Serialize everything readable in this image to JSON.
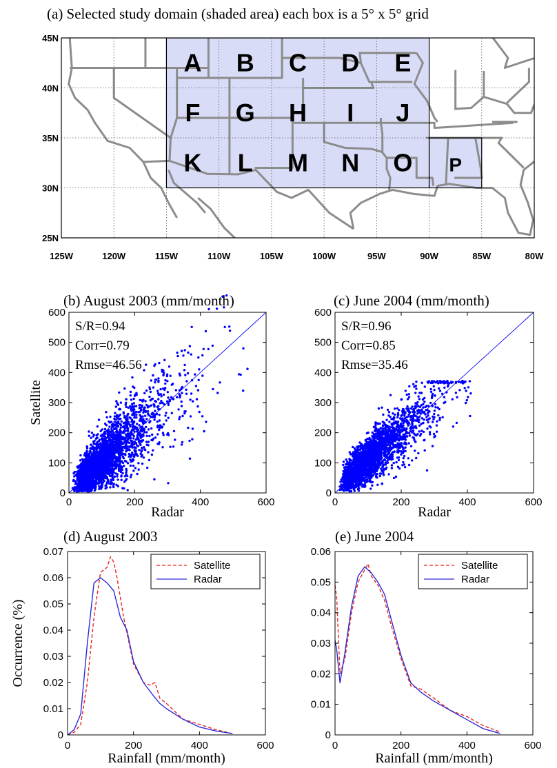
{
  "titles": {
    "a": "(a) Selected study domain (shaded area)  each box is a 5° x 5° grid",
    "b": "(b)  August 2003  (mm/month)",
    "c": "(c) June 2004 (mm/month)",
    "d": "(d)  August 2003",
    "e": "(e) June 2004"
  },
  "colors": {
    "shade": "#d9dcf7",
    "scatter": "#0000ff",
    "satellite": "#e8231d",
    "radar": "#2b2bd6",
    "border": "#8c8c8c"
  },
  "chart_data": [
    {
      "id": "a",
      "type": "map",
      "title": "(a) Selected study domain (shaded area)  each box is a 5° x 5° grid",
      "x_ticks": [
        "125W",
        "120W",
        "115W",
        "110W",
        "105W",
        "100W",
        "95W",
        "90W",
        "85W",
        "80W"
      ],
      "y_ticks": [
        "25N",
        "30N",
        "35N",
        "40N",
        "45N"
      ],
      "xlim": [
        -125,
        -80
      ],
      "ylim": [
        25,
        45
      ],
      "grid": true,
      "boxes": [
        {
          "label": "A",
          "lon": [
            -115,
            -110
          ],
          "lat": [
            40,
            45
          ]
        },
        {
          "label": "B",
          "lon": [
            -110,
            -105
          ],
          "lat": [
            40,
            45
          ]
        },
        {
          "label": "C",
          "lon": [
            -105,
            -100
          ],
          "lat": [
            40,
            45
          ]
        },
        {
          "label": "D",
          "lon": [
            -100,
            -95
          ],
          "lat": [
            40,
            45
          ]
        },
        {
          "label": "E",
          "lon": [
            -95,
            -90
          ],
          "lat": [
            40,
            45
          ]
        },
        {
          "label": "F",
          "lon": [
            -115,
            -110
          ],
          "lat": [
            35,
            40
          ]
        },
        {
          "label": "G",
          "lon": [
            -110,
            -105
          ],
          "lat": [
            35,
            40
          ]
        },
        {
          "label": "H",
          "lon": [
            -105,
            -100
          ],
          "lat": [
            35,
            40
          ]
        },
        {
          "label": "I",
          "lon": [
            -100,
            -95
          ],
          "lat": [
            35,
            40
          ]
        },
        {
          "label": "J",
          "lon": [
            -95,
            -90
          ],
          "lat": [
            35,
            40
          ]
        },
        {
          "label": "K",
          "lon": [
            -115,
            -110
          ],
          "lat": [
            30,
            35
          ]
        },
        {
          "label": "L",
          "lon": [
            -110,
            -105
          ],
          "lat": [
            30,
            35
          ]
        },
        {
          "label": "M",
          "lon": [
            -105,
            -100
          ],
          "lat": [
            30,
            35
          ]
        },
        {
          "label": "N",
          "lon": [
            -100,
            -95
          ],
          "lat": [
            30,
            35
          ]
        },
        {
          "label": "O",
          "lon": [
            -95,
            -90
          ],
          "lat": [
            30,
            35
          ]
        },
        {
          "label": "P",
          "lon": [
            -90,
            -85
          ],
          "lat": [
            30,
            35
          ]
        }
      ]
    },
    {
      "id": "b",
      "type": "scatter",
      "title": "(b)  August 2003  (mm/month)",
      "xlabel": "Radar",
      "ylabel": "Satellite",
      "xlim": [
        0,
        600
      ],
      "ylim": [
        0,
        600
      ],
      "x_ticks": [
        0,
        200,
        400,
        600
      ],
      "y_ticks": [
        0,
        100,
        200,
        300,
        400,
        500,
        600
      ],
      "stats": [
        "S/R=0.94",
        "Corr=0.79",
        "Rmse=46.56"
      ],
      "one_to_one_line": true,
      "points_summary": {
        "x_range": [
          10,
          550
        ],
        "y_range": [
          10,
          540
        ],
        "slope": 0.94,
        "r": 0.79
      }
    },
    {
      "id": "c",
      "type": "scatter",
      "title": "(c) June 2004 (mm/month)",
      "xlabel": "Radar",
      "ylabel": "",
      "xlim": [
        0,
        600
      ],
      "ylim": [
        0,
        600
      ],
      "x_ticks": [
        0,
        200,
        400,
        600
      ],
      "y_ticks": [
        0,
        100,
        200,
        300,
        400,
        500,
        600
      ],
      "stats": [
        "S/R=0.96",
        "Corr=0.85",
        "Rmse=35.46"
      ],
      "one_to_one_line": true,
      "points_summary": {
        "x_range": [
          5,
          420
        ],
        "y_range": [
          5,
          375
        ],
        "slope": 0.96,
        "r": 0.85
      }
    },
    {
      "id": "d",
      "type": "line",
      "title": "(d)  August 2003",
      "xlabel": "Rainfall (mm/month)",
      "ylabel": "Occurrence (%)",
      "xlim": [
        0,
        600
      ],
      "ylim": [
        0,
        0.07
      ],
      "x_ticks": [
        0,
        200,
        400,
        600
      ],
      "y_ticks": [
        "0",
        "0.01",
        "0.02",
        "0.03",
        "0.04",
        "0.05",
        "0.06",
        "0.07"
      ],
      "legend": [
        "Satellite",
        "Radar"
      ],
      "series": [
        {
          "name": "Satellite",
          "x": [
            0,
            20,
            40,
            60,
            80,
            100,
            120,
            130,
            140,
            150,
            170,
            200,
            230,
            250,
            265,
            280,
            300,
            350,
            400,
            450,
            500
          ],
          "y": [
            0,
            0.001,
            0.004,
            0.02,
            0.045,
            0.062,
            0.064,
            0.068,
            0.066,
            0.06,
            0.045,
            0.027,
            0.02,
            0.019,
            0.02,
            0.014,
            0.012,
            0.006,
            0.004,
            0.002,
            0.0005
          ]
        },
        {
          "name": "Radar",
          "x": [
            0,
            20,
            40,
            60,
            80,
            100,
            120,
            140,
            160,
            180,
            200,
            230,
            260,
            280,
            300,
            350,
            400,
            450,
            500
          ],
          "y": [
            0,
            0.002,
            0.008,
            0.035,
            0.058,
            0.06,
            0.058,
            0.055,
            0.045,
            0.04,
            0.028,
            0.02,
            0.015,
            0.012,
            0.01,
            0.006,
            0.003,
            0.0015,
            0.0005
          ]
        }
      ]
    },
    {
      "id": "e",
      "type": "line",
      "title": "(e) June 2004",
      "xlabel": "Rainfall (mm/month)",
      "ylabel": "",
      "xlim": [
        0,
        600
      ],
      "ylim": [
        0,
        0.06
      ],
      "x_ticks": [
        0,
        200,
        400,
        600
      ],
      "y_ticks": [
        "0",
        "0.01",
        "0.02",
        "0.03",
        "0.04",
        "0.05",
        "0.06"
      ],
      "legend": [
        "Satellite",
        "Radar"
      ],
      "series": [
        {
          "name": "Satellite",
          "x": [
            0,
            5,
            15,
            30,
            50,
            70,
            90,
            100,
            110,
            130,
            150,
            170,
            200,
            230,
            260,
            300,
            350,
            400,
            450,
            500
          ],
          "y": [
            0.049,
            0.045,
            0.02,
            0.025,
            0.04,
            0.05,
            0.054,
            0.056,
            0.052,
            0.049,
            0.044,
            0.036,
            0.025,
            0.016,
            0.015,
            0.012,
            0.008,
            0.006,
            0.003,
            0.001
          ]
        },
        {
          "name": "Radar",
          "x": [
            0,
            5,
            15,
            30,
            50,
            70,
            90,
            100,
            110,
            130,
            150,
            170,
            200,
            230,
            260,
            300,
            350,
            400,
            450,
            500
          ],
          "y": [
            0.031,
            0.028,
            0.017,
            0.027,
            0.042,
            0.052,
            0.055,
            0.054,
            0.053,
            0.05,
            0.046,
            0.038,
            0.026,
            0.017,
            0.014,
            0.011,
            0.008,
            0.005,
            0.002,
            0.0005
          ]
        }
      ]
    }
  ]
}
